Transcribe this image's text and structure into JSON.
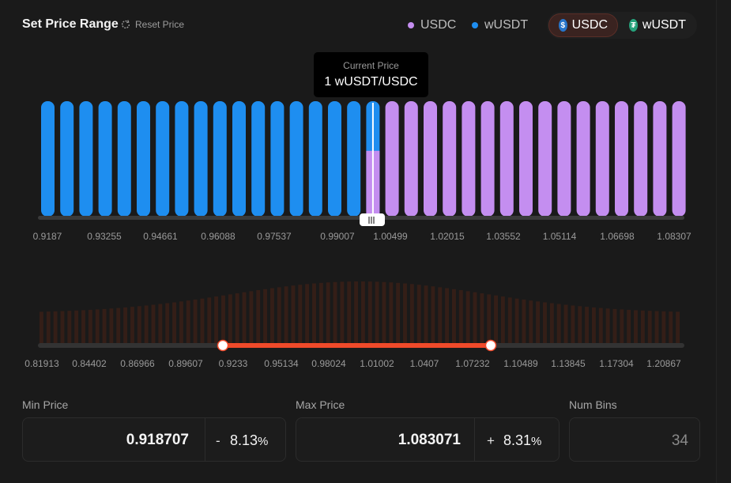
{
  "header": {
    "title": "Set Price Range",
    "reset_label": "Reset Price"
  },
  "legend": [
    {
      "label": "USDC",
      "color": "#c48ef0"
    },
    {
      "label": "wUSDT",
      "color": "#1e8ef0"
    }
  ],
  "token_toggle": {
    "options": [
      {
        "label": "USDC",
        "icon": "usdc-icon",
        "color": "#2775ca",
        "active": true
      },
      {
        "label": "wUSDT",
        "icon": "usdt-icon",
        "color": "#26a17b",
        "active": false
      }
    ]
  },
  "current_price": {
    "label": "Current Price",
    "value": "1 wUSDT/USDC"
  },
  "chart_data": [
    {
      "type": "bar",
      "name": "selected-range-liquidity",
      "bins": 34,
      "current_bin_index": 17,
      "current_bin_usdc_fraction": 0.57,
      "series": [
        {
          "name": "wUSDT",
          "color": "#1e8ef0",
          "bins_start": 0,
          "bins_end": 17
        },
        {
          "name": "USDC",
          "color": "#c48ef0",
          "bins_start": 17,
          "bins_end": 34
        }
      ],
      "tick_labels": [
        "0.9187",
        "0.93255",
        "0.94661",
        "0.96088",
        "0.97537",
        "0.99007",
        "1.00499",
        "1.02015",
        "1.03552",
        "1.05114",
        "1.06698",
        "1.08307"
      ]
    },
    {
      "type": "bar",
      "name": "full-range-overview",
      "tick_labels": [
        "0.81913",
        "0.84402",
        "0.86966",
        "0.89607",
        "0.9233",
        "0.95134",
        "0.98024",
        "1.01002",
        "1.0407",
        "1.07232",
        "1.10489",
        "1.13845",
        "1.17304",
        "1.20867"
      ],
      "selected_range": {
        "from": "0.9233",
        "to": "1.07232"
      },
      "accent": "#f04a2a"
    }
  ],
  "inputs": {
    "min_price": {
      "label": "Min Price",
      "value": "0.918707",
      "sign": "-",
      "percent": "8.13",
      "unit": "%"
    },
    "max_price": {
      "label": "Max Price",
      "value": "1.083071",
      "sign": "+",
      "percent": "8.31",
      "unit": "%"
    },
    "num_bins": {
      "label": "Num Bins",
      "value": "34"
    }
  }
}
